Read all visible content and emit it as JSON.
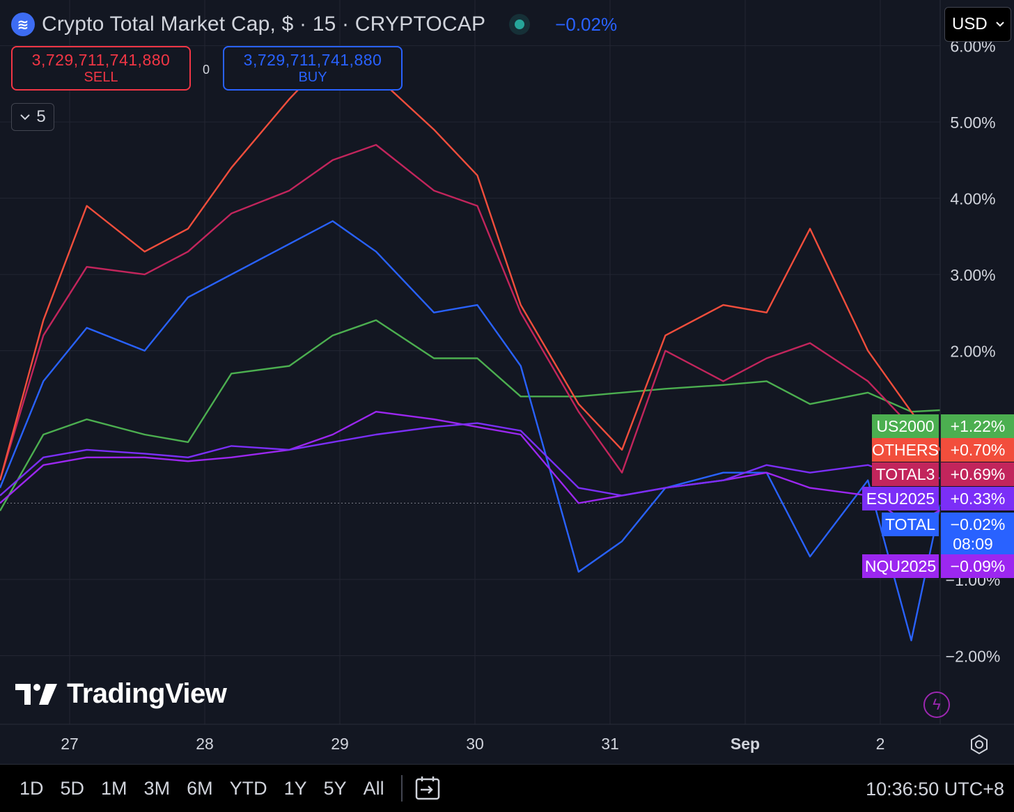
{
  "header": {
    "title": "Crypto Total Market Cap, $ · 15 · CRYPTOCAP",
    "change": "−0.02%",
    "logo_icon": "crypto-logo-icon"
  },
  "trade": {
    "sell_price": "3,729,711,741,880",
    "sell_label": "SELL",
    "buy_price": "3,729,711,741,880",
    "buy_label": "BUY",
    "spread": "0"
  },
  "indicators_toggle": {
    "count": "5",
    "icon": "chevron-down-icon"
  },
  "currency": {
    "value": "USD",
    "icon": "chevron-down-icon"
  },
  "watermark": {
    "text": "TradingView",
    "logo": "tradingview-logo-icon"
  },
  "bottom_bar": {
    "ranges": [
      "1D",
      "5D",
      "1M",
      "3M",
      "6M",
      "YTD",
      "1Y",
      "5Y",
      "All"
    ],
    "goto_icon": "calendar-goto-icon",
    "clock": "10:36:50 UTC+8"
  },
  "colors": {
    "background": "#131722",
    "grid": "#232632",
    "US2000": "#4caf50",
    "OTHERS": "#f24e3c",
    "TOTAL3": "#c2255c",
    "ESU2025": "#7b2ff7",
    "TOTAL": "#2962ff",
    "NQU2025": "#9c27f0"
  },
  "chart_data": {
    "type": "line",
    "x_ticks": [
      "27",
      "28",
      "29",
      "30",
      "31",
      "Sep",
      "2"
    ],
    "y_ticks": [
      "6.00%",
      "5.00%",
      "4.00%",
      "3.00%",
      "2.00%",
      "−1.00%",
      "−2.00%"
    ],
    "y_unit": "%",
    "ylim": [
      -2.9,
      6.6
    ],
    "x": [
      0,
      0.3,
      0.6,
      1.0,
      1.3,
      1.6,
      2.0,
      2.3,
      2.6,
      3.0,
      3.3,
      3.6,
      4.0,
      4.3,
      4.6,
      5.0,
      5.3,
      5.6,
      6.0,
      6.3,
      6.5
    ],
    "series": [
      {
        "name": "US2000",
        "last_value": "+1.22%",
        "values": [
          -0.1,
          0.9,
          1.1,
          0.9,
          0.8,
          1.7,
          1.8,
          2.2,
          2.4,
          1.9,
          1.9,
          1.4,
          1.4,
          1.45,
          1.5,
          1.55,
          1.6,
          1.3,
          1.45,
          1.2,
          1.22
        ]
      },
      {
        "name": "OTHERS",
        "last_value": "+0.70%",
        "values": [
          0.3,
          2.4,
          3.9,
          3.3,
          3.6,
          4.4,
          5.3,
          5.9,
          5.6,
          4.9,
          4.3,
          2.6,
          1.3,
          0.7,
          2.2,
          2.6,
          2.5,
          3.6,
          2.0,
          1.2,
          0.7
        ]
      },
      {
        "name": "TOTAL3",
        "last_value": "+0.69%",
        "values": [
          0.3,
          2.2,
          3.1,
          3.0,
          3.3,
          3.8,
          4.1,
          4.5,
          4.7,
          4.1,
          3.9,
          2.5,
          1.2,
          0.4,
          2.0,
          1.6,
          1.9,
          2.1,
          1.6,
          1.0,
          0.69
        ]
      },
      {
        "name": "ESU2025",
        "last_value": "+0.33%",
        "values": [
          0.1,
          0.6,
          0.7,
          0.65,
          0.6,
          0.75,
          0.7,
          0.8,
          0.9,
          1.0,
          1.05,
          0.95,
          0.2,
          0.1,
          0.2,
          0.3,
          0.5,
          0.4,
          0.5,
          0.3,
          0.33
        ]
      },
      {
        "name": "TOTAL",
        "last_value": "−0.02%",
        "values": [
          0.2,
          1.6,
          2.3,
          2.0,
          2.7,
          3.0,
          3.4,
          3.7,
          3.3,
          2.5,
          2.6,
          1.8,
          -0.9,
          -0.5,
          0.2,
          0.4,
          0.4,
          -0.7,
          0.3,
          -1.8,
          -0.02
        ]
      },
      {
        "name": "NQU2025",
        "last_value": "−0.09%",
        "values": [
          0.0,
          0.5,
          0.6,
          0.6,
          0.55,
          0.6,
          0.7,
          0.9,
          1.2,
          1.1,
          1.0,
          0.9,
          0.0,
          0.1,
          0.2,
          0.3,
          0.4,
          0.2,
          0.1,
          -0.3,
          -0.09
        ]
      }
    ],
    "countdown": "08:09",
    "grid": true,
    "legend": "right-axis-labels"
  }
}
